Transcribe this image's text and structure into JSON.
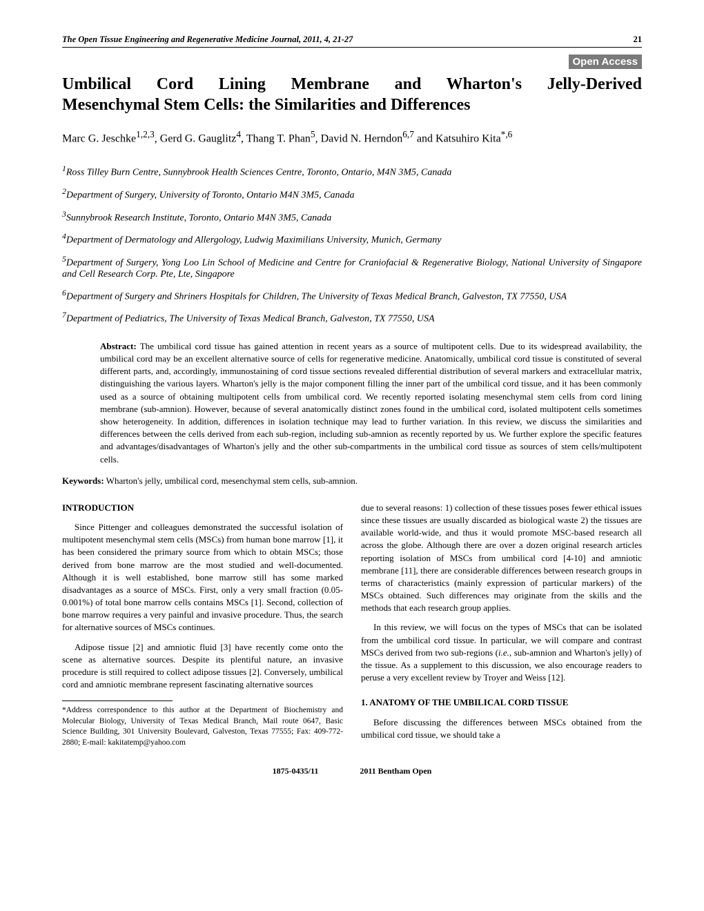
{
  "header": {
    "journal_name": "The Open Tissue Engineering and Regenerative Medicine Journal,",
    "year_vol": " 2011, ",
    "vol": "4,",
    "pages": " 21-27",
    "page_num": "21"
  },
  "open_access_label": "Open Access",
  "title_line1": "Umbilical Cord Lining Membrane and Wharton's Jelly-Derived",
  "title_line2": "Mesenchymal Stem Cells: the Similarities and Differences",
  "authors_html": "Marc G. Jeschke<sup>1,2,3</sup>, Gerd G. Gauglitz<sup>4</sup>, Thang T. Phan<sup>5</sup>, David N. Herndon<sup>6,7</sup> and Katsuhiro Kita<sup>*,6</sup>",
  "affiliations": [
    "<sup>1</sup>Ross Tilley Burn Centre, Sunnybrook Health Sciences Centre, Toronto, Ontario, M4N 3M5, Canada",
    "<sup>2</sup>Department of Surgery, University of Toronto, Ontario M4N 3M5, Canada",
    "<sup>3</sup>Sunnybrook Research Institute, Toronto, Ontario M4N 3M5, Canada",
    "<sup>4</sup>Department of Dermatology and Allergology, Ludwig Maximilians University, Munich, Germany",
    "<sup>5</sup>Department of Surgery, Yong Loo Lin School of Medicine and Centre for Craniofacial & Regenerative Biology, National University of Singapore and Cell Research Corp. Pte, Lte, Singapore",
    "<sup>6</sup>Department of Surgery and Shriners Hospitals for Children, The University of Texas Medical Branch, Galveston, TX 77550, USA",
    "<sup>7</sup>Department of Pediatrics, The University of Texas Medical Branch, Galveston, TX 77550, USA"
  ],
  "abstract_label": "Abstract:",
  "abstract_text": " The umbilical cord tissue has gained attention in recent years as a source of multipotent cells. Due to its widespread availability, the umbilical cord may be an excellent alternative source of cells for regenerative medicine. Anatomically, umbilical cord tissue is constituted of several different parts, and, accordingly, immunostaining of cord tissue sections revealed differential distribution of several markers and extracellular matrix, distinguishing the various layers. Wharton's jelly is the major component filling the inner part of the umbilical cord tissue, and it has been commonly used as a source of obtaining multipotent cells from umbilical cord. We recently reported isolating mesenchymal stem cells from cord lining membrane (sub-amnion). However, because of several anatomically distinct zones found in the umbilical cord, isolated multipotent cells sometimes show heterogeneity. In addition, differences in isolation technique may lead to further variation. In this review, we discuss the similarities and differences between the cells derived from each sub-region, including sub-amnion as recently reported by us. We further explore the specific features and advantages/disadvantages of Wharton's jelly and the other sub-compartments in the umbilical cord tissue as sources of stem cells/multipotent cells.",
  "keywords_label": "Keywords:",
  "keywords_text": " Wharton's jelly, umbilical cord, mesenchymal stem cells, sub-amnion.",
  "intro_head": "INTRODUCTION",
  "intro_p1": "Since Pittenger and colleagues demonstrated the successful isolation of multipotent mesenchymal stem cells (MSCs) from human bone marrow [1], it has been considered the primary source from which to obtain MSCs; those derived from bone marrow are the most studied and well-documented. Although it is well established, bone marrow still has some marked disadvantages as a source of MSCs. First, only a very small fraction (0.05-0.001%) of total bone marrow cells contains MSCs [1]. Second, collection of bone marrow requires a very painful and invasive procedure. Thus, the search for alternative sources of MSCs continues.",
  "intro_p2": "Adipose tissue [2] and amniotic fluid [3] have recently come onto the scene as alternative sources. Despite its plentiful nature, an invasive procedure is still required to collect adipose tissues [2]. Conversely, umbilical cord and amniotic membrane represent fascinating alternative sources",
  "col2_p1": "due to several reasons: 1) collection of these tissues poses fewer ethical issues since these tissues are usually discarded as biological waste 2) the tissues are available world-wide, and thus it would promote MSC-based research all across the globe. Although there are over a dozen original research articles reporting isolation of MSCs from umbilical cord [4-10] and amniotic membrane [11], there are considerable differences between research groups in terms of characteristics (mainly expression of particular markers) of the MSCs obtained. Such differences may originate from the skills and the methods that each research group applies.",
  "col2_p2": "In this review, we will focus on the types of MSCs that can be isolated from the umbilical cord tissue. In particular, we will compare and contrast MSCs derived from two sub-regions (i.e., sub-amnion and Wharton's jelly) of the tissue. As a supplement to this discussion, we also encourage readers to peruse a very excellent review by Troyer and Weiss [12].",
  "section1_head": "1. ANATOMY OF THE UMBILICAL CORD TISSUE",
  "section1_p1": "Before discussing the differences between MSCs obtained from the umbilical cord tissue, we should take a",
  "footnote_text": "*Address correspondence to this author at the Department of Biochemistry and Molecular Biology, University of Texas Medical Branch, Mail route 0647, Basic Science Building, 301 University Boulevard, Galveston, Texas 77555; Fax: 409-772-2880; E-mail: kakitatemp@yahoo.com",
  "footer": {
    "issn": "1875-0435/11",
    "copyright": "2011 Bentham Open"
  }
}
